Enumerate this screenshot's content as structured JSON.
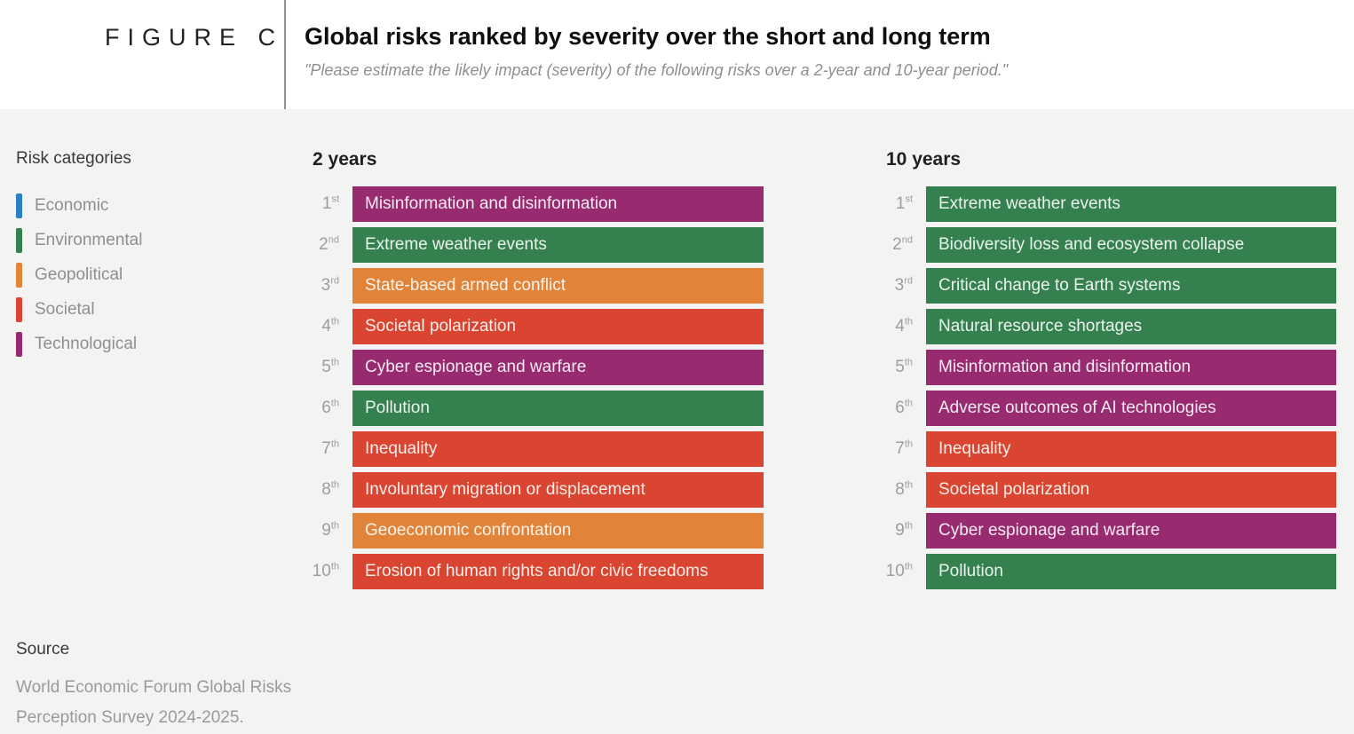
{
  "figure_label": "FIGURE C",
  "header": {
    "title": "Global risks ranked by severity over the short and long term",
    "subtitle": "\"Please estimate the likely impact (severity) of the following risks over a 2-year and 10-year period.\""
  },
  "source": {
    "title": "Source",
    "lines": [
      "World Economic Forum Global Risks",
      "Perception Survey 2024-2025."
    ]
  },
  "chart_data": {
    "type": "table",
    "title": "Global risks ranked by severity over the short and long term",
    "legend": {
      "title": "Risk categories",
      "categories": [
        {
          "name": "Economic",
          "color": "#2d7fc1"
        },
        {
          "name": "Environmental",
          "color": "#35804f"
        },
        {
          "name": "Geopolitical",
          "color": "#e1843a"
        },
        {
          "name": "Societal",
          "color": "#d94530"
        },
        {
          "name": "Technological",
          "color": "#982b70"
        }
      ]
    },
    "columns": [
      {
        "heading": "2 years",
        "ranks": [
          {
            "rank": "1",
            "suffix": "st",
            "label": "Misinformation and disinformation",
            "category": "Technological"
          },
          {
            "rank": "2",
            "suffix": "nd",
            "label": "Extreme weather events",
            "category": "Environmental"
          },
          {
            "rank": "3",
            "suffix": "rd",
            "label": "State-based armed conflict",
            "category": "Geopolitical"
          },
          {
            "rank": "4",
            "suffix": "th",
            "label": "Societal polarization",
            "category": "Societal"
          },
          {
            "rank": "5",
            "suffix": "th",
            "label": "Cyber espionage and warfare",
            "category": "Technological"
          },
          {
            "rank": "6",
            "suffix": "th",
            "label": "Pollution",
            "category": "Environmental"
          },
          {
            "rank": "7",
            "suffix": "th",
            "label": "Inequality",
            "category": "Societal"
          },
          {
            "rank": "8",
            "suffix": "th",
            "label": "Involuntary migration or displacement",
            "category": "Societal"
          },
          {
            "rank": "9",
            "suffix": "th",
            "label": "Geoeconomic confrontation",
            "category": "Geopolitical"
          },
          {
            "rank": "10",
            "suffix": "th",
            "label": "Erosion of human rights and/or civic freedoms",
            "category": "Societal"
          }
        ]
      },
      {
        "heading": "10 years",
        "ranks": [
          {
            "rank": "1",
            "suffix": "st",
            "label": "Extreme weather events",
            "category": "Environmental"
          },
          {
            "rank": "2",
            "suffix": "nd",
            "label": "Biodiversity loss and ecosystem collapse",
            "category": "Environmental"
          },
          {
            "rank": "3",
            "suffix": "rd",
            "label": "Critical change to Earth systems",
            "category": "Environmental"
          },
          {
            "rank": "4",
            "suffix": "th",
            "label": "Natural resource shortages",
            "category": "Environmental"
          },
          {
            "rank": "5",
            "suffix": "th",
            "label": "Misinformation and disinformation",
            "category": "Technological"
          },
          {
            "rank": "6",
            "suffix": "th",
            "label": "Adverse outcomes of AI technologies",
            "category": "Technological"
          },
          {
            "rank": "7",
            "suffix": "th",
            "label": "Inequality",
            "category": "Societal"
          },
          {
            "rank": "8",
            "suffix": "th",
            "label": "Societal polarization",
            "category": "Societal"
          },
          {
            "rank": "9",
            "suffix": "th",
            "label": "Cyber espionage and warfare",
            "category": "Technological"
          },
          {
            "rank": "10",
            "suffix": "th",
            "label": "Pollution",
            "category": "Environmental"
          }
        ]
      }
    ]
  }
}
